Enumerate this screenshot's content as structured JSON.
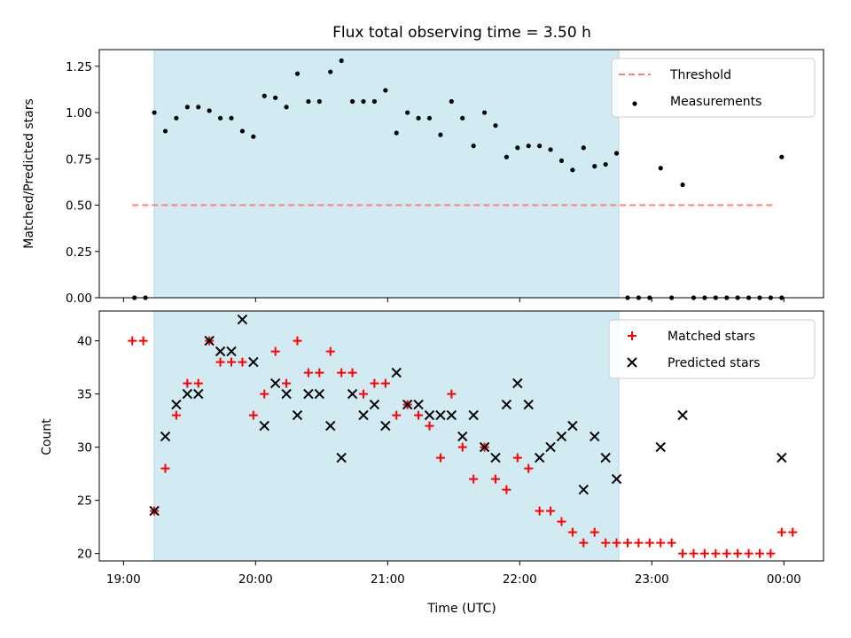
{
  "title": "Flux total observing time = 3.50 h",
  "colors": {
    "shade": "#add8e6",
    "threshold": "#ff7f7f",
    "measurement": "#000000",
    "matched": "#ff0000",
    "predicted": "#000000"
  },
  "chart_data": [
    {
      "type": "scatter",
      "ylabel": "Matched/Predicted stars",
      "ylim": [
        0,
        1.34
      ],
      "yticks": [
        0.0,
        0.25,
        0.5,
        0.75,
        1.0,
        1.25
      ],
      "shaded_range": [
        "19:14",
        "22:45"
      ],
      "threshold": {
        "name": "Threshold",
        "value": 0.5,
        "x_range": [
          "19:04",
          "23:56"
        ]
      },
      "legend_position": "top-right",
      "series": [
        {
          "name": "Measurements",
          "points": [
            [
              "19:05",
              0.0
            ],
            [
              "19:10",
              0.0
            ],
            [
              "19:14",
              1.0
            ],
            [
              "19:19",
              0.9
            ],
            [
              "19:24",
              0.97
            ],
            [
              "19:29",
              1.03
            ],
            [
              "19:34",
              1.03
            ],
            [
              "19:39",
              1.01
            ],
            [
              "19:44",
              0.97
            ],
            [
              "19:49",
              0.97
            ],
            [
              "19:54",
              0.9
            ],
            [
              "19:59",
              0.87
            ],
            [
              "20:04",
              1.09
            ],
            [
              "20:09",
              1.08
            ],
            [
              "20:14",
              1.03
            ],
            [
              "20:19",
              1.21
            ],
            [
              "20:24",
              1.06
            ],
            [
              "20:29",
              1.06
            ],
            [
              "20:34",
              1.22
            ],
            [
              "20:39",
              1.28
            ],
            [
              "20:44",
              1.06
            ],
            [
              "20:49",
              1.06
            ],
            [
              "20:54",
              1.06
            ],
            [
              "20:59",
              1.12
            ],
            [
              "21:04",
              0.89
            ],
            [
              "21:09",
              1.0
            ],
            [
              "21:14",
              0.97
            ],
            [
              "21:19",
              0.97
            ],
            [
              "21:24",
              0.88
            ],
            [
              "21:29",
              1.06
            ],
            [
              "21:34",
              0.97
            ],
            [
              "21:39",
              0.82
            ],
            [
              "21:44",
              1.0
            ],
            [
              "21:49",
              0.93
            ],
            [
              "21:54",
              0.76
            ],
            [
              "21:59",
              0.81
            ],
            [
              "22:04",
              0.82
            ],
            [
              "22:09",
              0.82
            ],
            [
              "22:14",
              0.8
            ],
            [
              "22:19",
              0.74
            ],
            [
              "22:24",
              0.69
            ],
            [
              "22:29",
              0.81
            ],
            [
              "22:34",
              0.71
            ],
            [
              "22:39",
              0.72
            ],
            [
              "22:44",
              0.78
            ],
            [
              "22:49",
              0.0
            ],
            [
              "22:54",
              0.0
            ],
            [
              "22:59",
              0.0
            ],
            [
              "23:04",
              0.7
            ],
            [
              "23:09",
              0.0
            ],
            [
              "23:14",
              0.61
            ],
            [
              "23:19",
              0.0
            ],
            [
              "23:24",
              0.0
            ],
            [
              "23:29",
              0.0
            ],
            [
              "23:34",
              0.0
            ],
            [
              "23:39",
              0.0
            ],
            [
              "23:44",
              0.0
            ],
            [
              "23:49",
              0.0
            ],
            [
              "23:54",
              0.0
            ],
            [
              "23:59",
              0.76
            ],
            [
              "23:59",
              0.0
            ]
          ]
        }
      ]
    },
    {
      "type": "scatter",
      "xlabel": "Time (UTC)",
      "ylabel": "Count",
      "ylim": [
        19.3,
        42.8
      ],
      "yticks": [
        20,
        25,
        30,
        35,
        40
      ],
      "xticks": [
        "19:00",
        "20:00",
        "21:00",
        "22:00",
        "23:00",
        "00:00"
      ],
      "shaded_range": [
        "19:14",
        "22:45"
      ],
      "legend_position": "top-right",
      "series": [
        {
          "name": "Matched stars",
          "points": [
            [
              "19:04",
              40
            ],
            [
              "19:09",
              40
            ],
            [
              "19:14",
              24
            ],
            [
              "19:19",
              28
            ],
            [
              "19:24",
              33
            ],
            [
              "19:29",
              36
            ],
            [
              "19:34",
              36
            ],
            [
              "19:39",
              40
            ],
            [
              "19:44",
              38
            ],
            [
              "19:49",
              38
            ],
            [
              "19:54",
              38
            ],
            [
              "19:59",
              33
            ],
            [
              "20:04",
              35
            ],
            [
              "20:09",
              39
            ],
            [
              "20:14",
              36
            ],
            [
              "20:19",
              40
            ],
            [
              "20:24",
              37
            ],
            [
              "20:29",
              37
            ],
            [
              "20:34",
              39
            ],
            [
              "20:39",
              37
            ],
            [
              "20:44",
              37
            ],
            [
              "20:49",
              35
            ],
            [
              "20:54",
              36
            ],
            [
              "20:59",
              36
            ],
            [
              "21:04",
              33
            ],
            [
              "21:09",
              34
            ],
            [
              "21:14",
              33
            ],
            [
              "21:19",
              32
            ],
            [
              "21:24",
              29
            ],
            [
              "21:29",
              35
            ],
            [
              "21:34",
              30
            ],
            [
              "21:39",
              27
            ],
            [
              "21:44",
              30
            ],
            [
              "21:49",
              27
            ],
            [
              "21:54",
              26
            ],
            [
              "21:59",
              29
            ],
            [
              "22:04",
              28
            ],
            [
              "22:09",
              24
            ],
            [
              "22:14",
              24
            ],
            [
              "22:19",
              23
            ],
            [
              "22:24",
              22
            ],
            [
              "22:29",
              21
            ],
            [
              "22:34",
              22
            ],
            [
              "22:39",
              21
            ],
            [
              "22:44",
              21
            ],
            [
              "22:49",
              21
            ],
            [
              "22:54",
              21
            ],
            [
              "22:59",
              21
            ],
            [
              "23:04",
              21
            ],
            [
              "23:09",
              21
            ],
            [
              "23:14",
              20
            ],
            [
              "23:19",
              20
            ],
            [
              "23:24",
              20
            ],
            [
              "23:29",
              20
            ],
            [
              "23:34",
              20
            ],
            [
              "23:39",
              20
            ],
            [
              "23:44",
              20
            ],
            [
              "23:49",
              20
            ],
            [
              "23:54",
              20
            ],
            [
              "23:59",
              22
            ],
            [
              "00:04",
              22
            ]
          ]
        },
        {
          "name": "Predicted stars",
          "points": [
            [
              "19:14",
              24
            ],
            [
              "19:19",
              31
            ],
            [
              "19:24",
              34
            ],
            [
              "19:29",
              35
            ],
            [
              "19:34",
              35
            ],
            [
              "19:39",
              40
            ],
            [
              "19:44",
              39
            ],
            [
              "19:49",
              39
            ],
            [
              "19:54",
              42
            ],
            [
              "19:59",
              38
            ],
            [
              "20:04",
              32
            ],
            [
              "20:09",
              36
            ],
            [
              "20:14",
              35
            ],
            [
              "20:19",
              33
            ],
            [
              "20:24",
              35
            ],
            [
              "20:29",
              35
            ],
            [
              "20:34",
              32
            ],
            [
              "20:39",
              29
            ],
            [
              "20:44",
              35
            ],
            [
              "20:49",
              33
            ],
            [
              "20:54",
              34
            ],
            [
              "20:59",
              32
            ],
            [
              "21:04",
              37
            ],
            [
              "21:09",
              34
            ],
            [
              "21:14",
              34
            ],
            [
              "21:19",
              33
            ],
            [
              "21:24",
              33
            ],
            [
              "21:29",
              33
            ],
            [
              "21:34",
              31
            ],
            [
              "21:39",
              33
            ],
            [
              "21:44",
              30
            ],
            [
              "21:49",
              29
            ],
            [
              "21:54",
              34
            ],
            [
              "21:59",
              36
            ],
            [
              "22:04",
              34
            ],
            [
              "22:09",
              29
            ],
            [
              "22:14",
              30
            ],
            [
              "22:19",
              31
            ],
            [
              "22:24",
              32
            ],
            [
              "22:29",
              26
            ],
            [
              "22:34",
              31
            ],
            [
              "22:39",
              29
            ],
            [
              "22:44",
              27
            ],
            [
              "23:04",
              30
            ],
            [
              "23:14",
              33
            ],
            [
              "23:59",
              29
            ]
          ]
        }
      ]
    }
  ]
}
